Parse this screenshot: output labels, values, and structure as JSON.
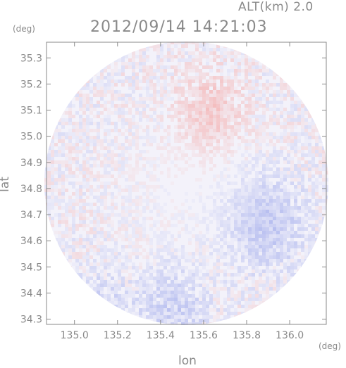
{
  "header": {
    "altitude_label": "ALT(km) 2.0",
    "timestamp": "2012/09/14 14:21:03"
  },
  "chart_data": {
    "type": "heatmap",
    "title": "2012/09/14 14:21:03",
    "subtitle": "ALT(km) 2.0",
    "xlabel": "lon",
    "ylabel": "lat",
    "x_unit": "(deg)",
    "y_unit": "(deg)",
    "xlim": [
      134.87,
      136.17
    ],
    "ylim": [
      34.28,
      35.36
    ],
    "x_ticks": [
      "135.0",
      "135.2",
      "135.4",
      "135.6",
      "135.8",
      "136.0"
    ],
    "y_ticks": [
      "34.3",
      "34.4",
      "34.5",
      "34.6",
      "34.7",
      "34.8",
      "34.9",
      "35.0",
      "35.1",
      "35.2",
      "35.3"
    ],
    "center": {
      "lon": 135.52,
      "lat": 34.82
    },
    "radius_deg_lon": 0.66,
    "colors": {
      "positive": "#f4b3b3",
      "negative": "#b8bff0",
      "neutral": "#f3f2fa",
      "axis": "#8a8a8a"
    },
    "regions": [
      {
        "lon": 135.62,
        "lat": 35.1,
        "r": 0.16,
        "sign": "positive",
        "strength": 0.35
      },
      {
        "lon": 135.88,
        "lat": 34.68,
        "r": 0.18,
        "sign": "negative",
        "strength": 0.45
      },
      {
        "lon": 135.45,
        "lat": 34.35,
        "r": 0.16,
        "sign": "negative",
        "strength": 0.35
      },
      {
        "lon": 135.1,
        "lat": 34.35,
        "r": 0.14,
        "sign": "negative",
        "strength": 0.3
      }
    ]
  }
}
